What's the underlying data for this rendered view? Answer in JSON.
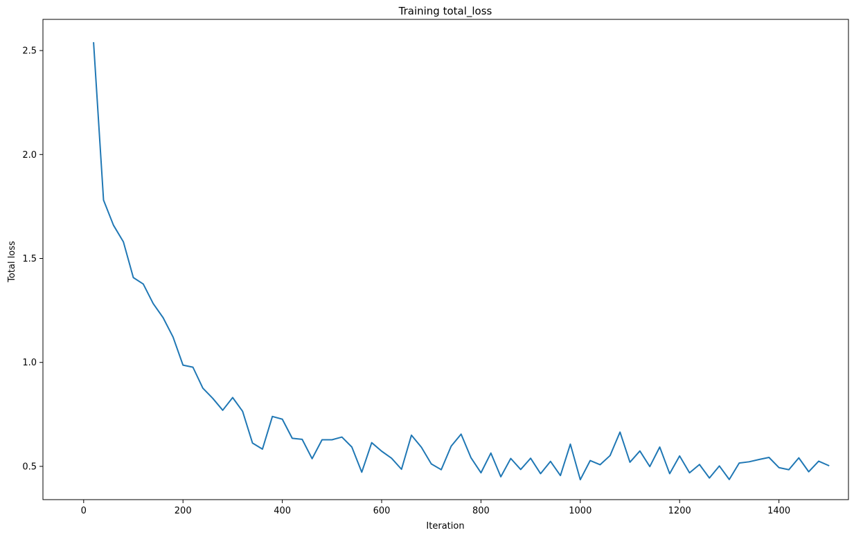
{
  "chart_data": {
    "type": "line",
    "title": "Training total_loss",
    "xlabel": "Iteration",
    "ylabel": "Total loss",
    "xlim": [
      -82,
      1540
    ],
    "ylim": [
      0.34,
      2.65
    ],
    "xticks": [
      0,
      200,
      400,
      600,
      800,
      1000,
      1200,
      1400
    ],
    "xtick_labels": [
      "0",
      "200",
      "400",
      "600",
      "800",
      "1000",
      "1200",
      "1400"
    ],
    "yticks": [
      0.5,
      1.0,
      1.5,
      2.0,
      2.5
    ],
    "ytick_labels": [
      "0.5",
      "1.0",
      "1.5",
      "2.0",
      "2.5"
    ],
    "grid": false,
    "line_color": "#1f77b4",
    "series": [
      {
        "x": [
          20,
          40,
          60,
          80,
          100,
          120,
          140,
          160,
          180,
          200,
          220,
          240,
          260,
          280,
          300,
          320,
          340,
          360,
          380,
          400,
          420,
          440,
          460,
          480,
          500,
          520,
          540,
          560,
          580,
          600,
          620,
          640,
          660,
          680,
          700,
          720,
          740,
          760,
          780,
          800,
          820,
          840,
          860,
          880,
          900,
          920,
          940,
          960,
          980,
          1000,
          1020,
          1040,
          1060,
          1080,
          1100,
          1120,
          1140,
          1160,
          1180,
          1200,
          1220,
          1240,
          1260,
          1280,
          1300,
          1320,
          1340,
          1360,
          1380,
          1400,
          1420,
          1440,
          1460,
          1480,
          1500
        ],
        "values": [
          2.537,
          1.781,
          1.66,
          1.58,
          1.408,
          1.377,
          1.283,
          1.215,
          1.122,
          0.987,
          0.977,
          0.876,
          0.827,
          0.77,
          0.831,
          0.765,
          0.612,
          0.583,
          0.74,
          0.727,
          0.635,
          0.63,
          0.537,
          0.628,
          0.628,
          0.641,
          0.593,
          0.472,
          0.614,
          0.573,
          0.539,
          0.486,
          0.65,
          0.592,
          0.512,
          0.484,
          0.597,
          0.655,
          0.541,
          0.469,
          0.564,
          0.45,
          0.538,
          0.485,
          0.539,
          0.465,
          0.524,
          0.456,
          0.607,
          0.436,
          0.528,
          0.508,
          0.552,
          0.665,
          0.52,
          0.574,
          0.499,
          0.593,
          0.465,
          0.55,
          0.469,
          0.509,
          0.444,
          0.502,
          0.437,
          0.516,
          0.522,
          0.533,
          0.543,
          0.494,
          0.484,
          0.541,
          0.474,
          0.525,
          0.504
        ]
      }
    ]
  }
}
